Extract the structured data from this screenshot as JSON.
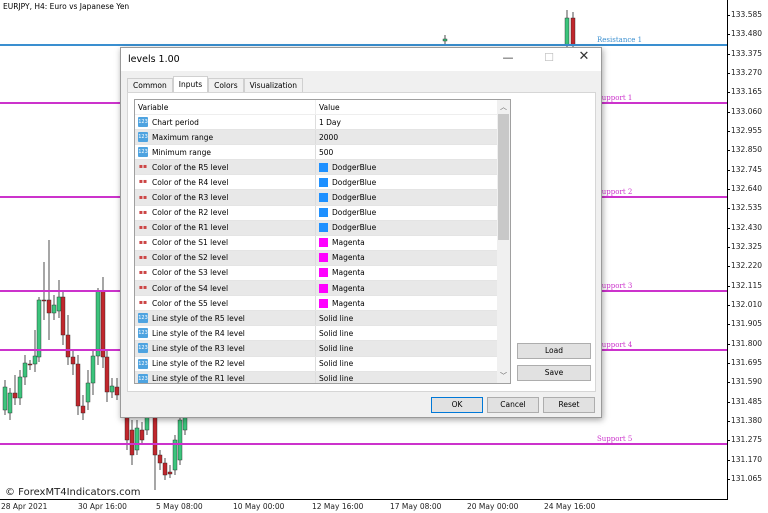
{
  "chart": {
    "title": "EURJPY, H4:  Euro vs Japanese Yen",
    "price_axis": [
      "133.585",
      "133.480",
      "133.375",
      "133.270",
      "133.165",
      "133.060",
      "132.955",
      "132.850",
      "132.745",
      "132.640",
      "132.535",
      "132.430",
      "132.325",
      "132.220",
      "132.115",
      "132.010",
      "131.905",
      "131.800",
      "131.695",
      "131.590",
      "131.485",
      "131.380",
      "131.275",
      "131.170",
      "131.065"
    ],
    "time_axis": [
      "28 Apr 2021",
      "30 Apr 16:00",
      "5 May 08:00",
      "10 May 00:00",
      "12 May 16:00",
      "17 May 08:00",
      "20 May 00:00",
      "24 May 16:00"
    ],
    "levels": [
      {
        "label": "Resistance 1",
        "color": "#3a8fd0"
      },
      {
        "label": "Support 1",
        "color": "#cc33cc"
      },
      {
        "label": "Support 2",
        "color": "#cc33cc"
      },
      {
        "label": "Support 3",
        "color": "#cc33cc"
      },
      {
        "label": "Support 4",
        "color": "#cc33cc"
      },
      {
        "label": "Support 5",
        "color": "#cc33cc"
      }
    ],
    "bull_color": "#3cc47c",
    "bear_color": "#c0272d",
    "watermark": "© ForexMT4Indicators.com"
  },
  "dialog": {
    "title": "levels 1.00",
    "tabs": [
      "Common",
      "Inputs",
      "Colors",
      "Visualization"
    ],
    "active_tab": "Inputs",
    "columns": [
      "Variable",
      "Value"
    ],
    "rows": [
      {
        "icon": "number-icon",
        "variable": "Chart period",
        "value": "1 Day"
      },
      {
        "icon": "number-icon",
        "variable": "Maximum range",
        "value": "2000"
      },
      {
        "icon": "number-icon",
        "variable": "Minimum range",
        "value": "500"
      },
      {
        "icon": "color-icon",
        "variable": "Color of the R5 level",
        "value": "DodgerBlue",
        "swatch": "#1e90ff"
      },
      {
        "icon": "color-icon",
        "variable": "Color of the R4 level",
        "value": "DodgerBlue",
        "swatch": "#1e90ff"
      },
      {
        "icon": "color-icon",
        "variable": "Color of the R3 level",
        "value": "DodgerBlue",
        "swatch": "#1e90ff"
      },
      {
        "icon": "color-icon",
        "variable": "Color of the R2 level",
        "value": "DodgerBlue",
        "swatch": "#1e90ff"
      },
      {
        "icon": "color-icon",
        "variable": "Color of the R1 level",
        "value": "DodgerBlue",
        "swatch": "#1e90ff"
      },
      {
        "icon": "color-icon",
        "variable": "Color of the S1 level",
        "value": "Magenta",
        "swatch": "#ff00ff"
      },
      {
        "icon": "color-icon",
        "variable": "Color of the S2 level",
        "value": "Magenta",
        "swatch": "#ff00ff"
      },
      {
        "icon": "color-icon",
        "variable": "Color of the S3 level",
        "value": "Magenta",
        "swatch": "#ff00ff"
      },
      {
        "icon": "color-icon",
        "variable": "Color of the S4 level",
        "value": "Magenta",
        "swatch": "#ff00ff"
      },
      {
        "icon": "color-icon",
        "variable": "Color of the S5 level",
        "value": "Magenta",
        "swatch": "#ff00ff"
      },
      {
        "icon": "number-icon",
        "variable": "Line style of the R5 level",
        "value": "Solid line"
      },
      {
        "icon": "number-icon",
        "variable": "Line style of the R4 level",
        "value": "Solid line"
      },
      {
        "icon": "number-icon",
        "variable": "Line style of the R3 level",
        "value": "Solid line"
      },
      {
        "icon": "number-icon",
        "variable": "Line style of the R2 level",
        "value": "Solid line"
      },
      {
        "icon": "number-icon",
        "variable": "Line style of the R1 level",
        "value": "Solid line"
      }
    ],
    "load_label": "Load",
    "save_label": "Save",
    "ok_label": "OK",
    "cancel_label": "Cancel",
    "reset_label": "Reset"
  }
}
